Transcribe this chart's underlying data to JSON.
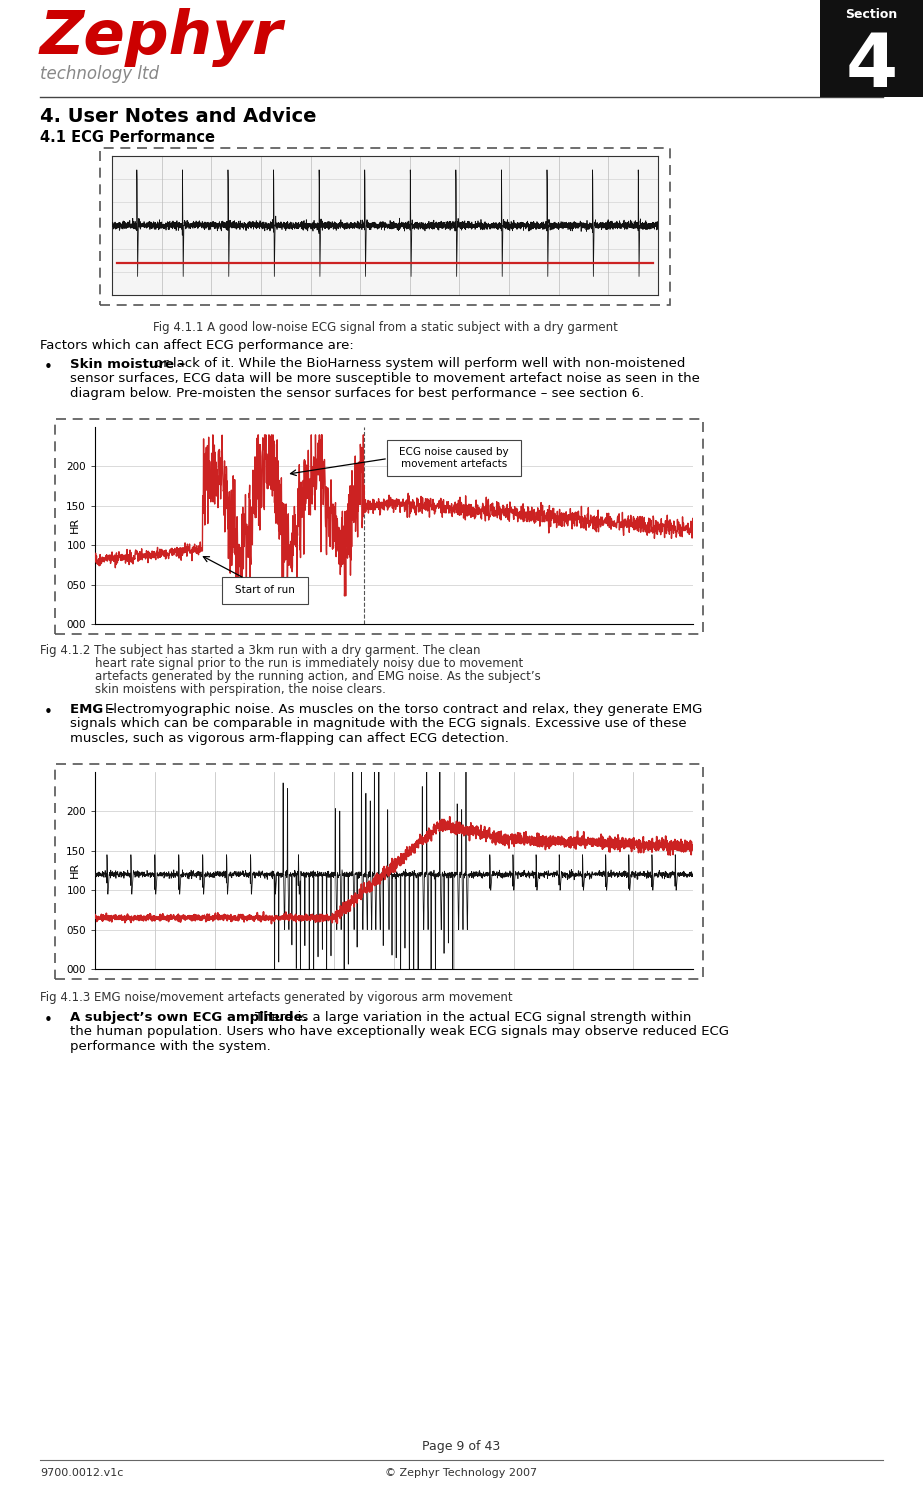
{
  "page_bg": "#ffffff",
  "header": {
    "zephyr_text": "Zephyr",
    "zephyr_color": "#cc0000",
    "tech_text": "technology ltd",
    "tech_color": "#888888",
    "section_box_bg": "#111111",
    "section_label": "Section",
    "section_number": "4",
    "section_text_color": "#ffffff"
  },
  "title_main": "4. User Notes and Advice",
  "subtitle": "4.1 ECG Performance",
  "fig1_caption": "Fig 4.1.1 A good low-noise ECG signal from a static subject with a dry garment",
  "body1_intro": "Factors which can affect ECG performance are:",
  "bullet1_line1": "Skin moisture – or lack of it. While the BioHarness system will perform well with non-moistened",
  "bullet1_line2": "sensor surfaces, ECG data will be more susceptible to movement artefact noise as seen in the",
  "bullet1_line3": "diagram below. Pre-moisten the sensor surfaces for best performance – see section 6.",
  "bullet1_bold": "Skin moisture",
  "fig2_caption_line1": "Fig 4.1.2 The subject has started a 3km run with a dry garment. The clean",
  "fig2_caption_line2": "      heart rate signal prior to the run is immediately noisy due to movement",
  "fig2_caption_line3": "      artefacts generated by the running action, and EMG noise. As the subject’s",
  "fig2_caption_line4": "      skin moistens with perspiration, the noise clears.",
  "bullet2_line1": "EMG – Electromyographic noise. As muscles on the torso contract and relax, they generate EMG",
  "bullet2_line2": "signals which can be comparable in magnitude with the ECG signals. Excessive use of these",
  "bullet2_line3": "muscles, such as vigorous arm-flapping can affect ECG detection.",
  "bullet2_bold": "EMG",
  "fig3_caption": "Fig 4.1.3 EMG noise/movement artefacts generated by vigorous arm movement",
  "bullet3_bold": "A subject’s own ECG amplitude.",
  "bullet3_line1": "A subject’s own ECG amplitude. There is a large variation in the actual ECG signal strength within",
  "bullet3_line2": "the human population. Users who have exceptionally weak ECG signals may observe reduced ECG",
  "bullet3_line3": "performance with the system.",
  "footer_page": "Page 9 of 43",
  "footer_left": "9700.0012.v1c",
  "footer_right": "© Zephyr Technology 2007",
  "annotation1": "ECG noise caused by\nmovement artefacts",
  "annotation2": "Start of run"
}
